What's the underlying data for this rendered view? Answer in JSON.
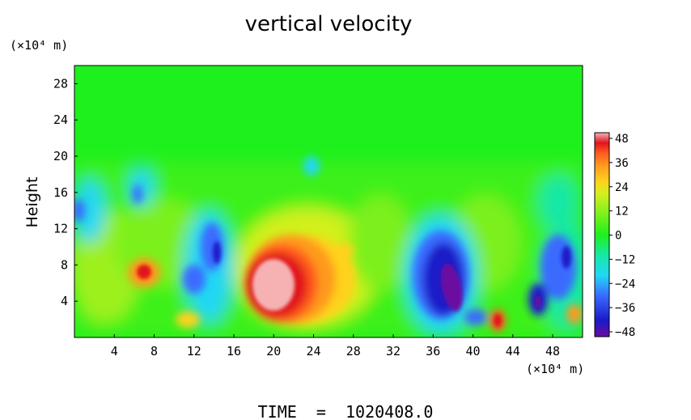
{
  "chart_data": {
    "type": "heatmap",
    "title": "vertical velocity",
    "ylabel": "Height",
    "y_unit_label": "(×10⁴ m)",
    "x_unit_label": "(×10⁴ m)",
    "footer": "TIME  =  1020408.0",
    "xlim": [
      0,
      51
    ],
    "ylim": [
      0,
      30
    ],
    "x_ticks": [
      "4",
      "8",
      "12",
      "16",
      "20",
      "24",
      "28",
      "32",
      "36",
      "40",
      "44",
      "48"
    ],
    "y_ticks": [
      "4",
      "8",
      "12",
      "16",
      "20",
      "24",
      "28"
    ],
    "colorbar": {
      "min": -48,
      "max": 48,
      "ticks": [
        "48",
        "36",
        "24",
        "12",
        "0",
        "−12",
        "−24",
        "−36",
        "−48"
      ],
      "colors": [
        "#6a0aa0",
        "#1a1ac8",
        "#3a6aff",
        "#22d7f5",
        "#16e8a6",
        "#1ef01e",
        "#7cf01e",
        "#d2f01e",
        "#ffd21e",
        "#ff9a1e",
        "#ff5a1e",
        "#e0141e",
        "#f6b2b2"
      ]
    },
    "features": [
      {
        "label": "updraft core",
        "x": 20.5,
        "y": 5.8,
        "peak": 48
      },
      {
        "label": "updraft",
        "x": 7,
        "y": 7,
        "peak": 24
      },
      {
        "label": "updraft",
        "x": 43,
        "y": 2,
        "peak": 36
      },
      {
        "label": "downdraft core",
        "x": 37.5,
        "y": 5,
        "peak": -48
      },
      {
        "label": "downdraft",
        "x": 14.5,
        "y": 8,
        "peak": -36
      },
      {
        "label": "downdraft",
        "x": 48,
        "y": 6,
        "peak": -36
      }
    ]
  }
}
